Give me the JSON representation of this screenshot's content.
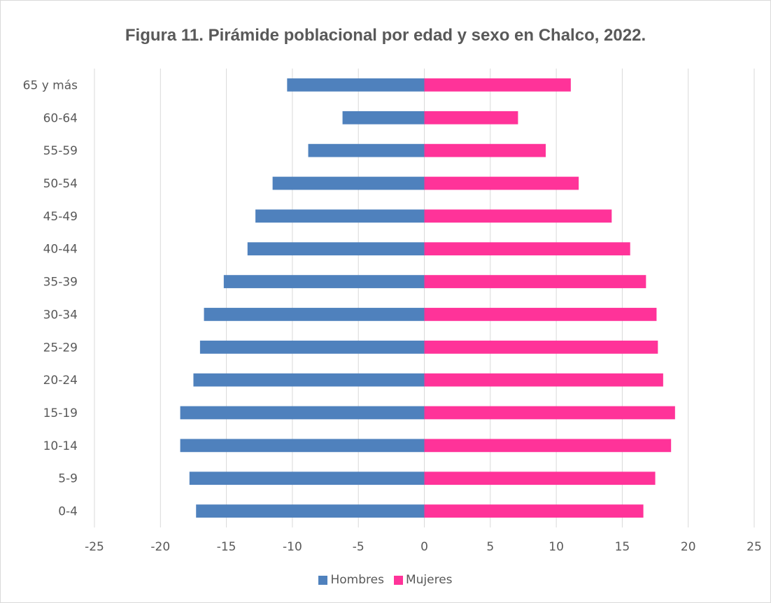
{
  "chart_data": {
    "type": "bar",
    "orientation": "horizontal",
    "title": "Figura 11. Pirámide poblacional por edad y sexo en Chalco, 2022.",
    "categories": [
      "0-4",
      "5-9",
      "10-14",
      "15-19",
      "20-24",
      "25-29",
      "30-34",
      "35-39",
      "40-44",
      "45-49",
      "50-54",
      "55-59",
      "60-64",
      "65 y más"
    ],
    "series": [
      {
        "name": "Hombres",
        "color": "#4f81bd",
        "values": [
          -17.3,
          -17.8,
          -18.5,
          -18.5,
          -17.5,
          -17.0,
          -16.7,
          -15.2,
          -13.4,
          -12.8,
          -11.5,
          -8.8,
          -6.2,
          -10.4
        ]
      },
      {
        "name": "Mujeres",
        "color": "#ff3399",
        "values": [
          16.6,
          17.5,
          18.7,
          19.0,
          18.1,
          17.7,
          17.6,
          16.8,
          15.6,
          14.2,
          11.7,
          9.2,
          7.1,
          11.1
        ]
      }
    ],
    "xlim": [
      -25,
      25
    ],
    "xticks": [
      -25,
      -20,
      -15,
      -10,
      -5,
      0,
      5,
      10,
      15,
      20,
      25
    ],
    "xlabel": "",
    "ylabel": "",
    "grid": "vertical",
    "legend": "bottom"
  }
}
